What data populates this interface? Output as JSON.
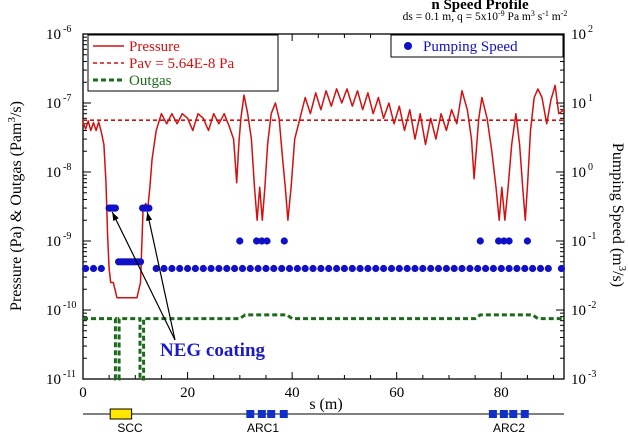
{
  "chart_data": {
    "type": "line",
    "title_partial": "n Speed Profile",
    "subtitle": {
      "ds": "ds = 0.1 m,",
      "q_prefix": "q = 5x10",
      "q_exp": "-9",
      "q_units": " Pa m",
      "q_units_exp": "3",
      "q_s": " s",
      "q_s_exp": "-1",
      "q_m": " m",
      "q_m_exp": "-2"
    },
    "xlabel": "s (m)",
    "ylabel_left": {
      "main": "Pressure (Pa)  &  Outgas (Pam",
      "sup": "3",
      "tail": "/s)"
    },
    "ylabel_right": {
      "main": "Pumping Speed (m",
      "sup": "3",
      "tail": "/s)"
    },
    "xlim": [
      0,
      92
    ],
    "x_ticks": [
      "0",
      "20",
      "40",
      "60",
      "80"
    ],
    "x_tick_values": [
      0,
      20,
      40,
      60,
      80
    ],
    "y_left_scale": "log",
    "y_left_range_exp": [
      -11,
      -6
    ],
    "y_left_ticks": [
      {
        "base": "10",
        "exp": "-11"
      },
      {
        "base": "10",
        "exp": "-10"
      },
      {
        "base": "10",
        "exp": "-9"
      },
      {
        "base": "10",
        "exp": "-8"
      },
      {
        "base": "10",
        "exp": "-7"
      },
      {
        "base": "10",
        "exp": "-6"
      }
    ],
    "y_right_scale": "log",
    "y_right_range_exp": [
      -3,
      2
    ],
    "y_right_ticks": [
      {
        "base": "10",
        "exp": "-3"
      },
      {
        "base": "10",
        "exp": "-2"
      },
      {
        "base": "10",
        "exp": "-1"
      },
      {
        "base": "10",
        "exp": "0"
      },
      {
        "base": "10",
        "exp": "1"
      },
      {
        "base": "10",
        "exp": "2"
      }
    ],
    "legend_left": [
      {
        "label": "Pressure",
        "color": "#d21010",
        "style": "solid"
      },
      {
        "label": "Pav = 5.64E-8 Pa",
        "color": "#d21010",
        "style": "dashed"
      },
      {
        "label": "Outgas",
        "color": "#1b6b1b",
        "style": "dashed"
      }
    ],
    "legend_right": [
      {
        "label": "Pumping Speed",
        "color": "#1010c8",
        "style": "markers"
      }
    ],
    "pav_value": 5.64e-08,
    "outgas": {
      "x": [
        0,
        6.2,
        6.2,
        6.9,
        6.9,
        10.9,
        10.9,
        11.6,
        11.6,
        30,
        31,
        39,
        40,
        75,
        76,
        86,
        87,
        92
      ],
      "y": [
        7.5e-11,
        7.5e-11,
        1e-11,
        1e-11,
        7.5e-11,
        7.5e-11,
        1e-11,
        1e-11,
        7.5e-11,
        7.5e-11,
        8.5e-11,
        8.5e-11,
        7.5e-11,
        7.5e-11,
        8.5e-11,
        8.5e-11,
        7.5e-11,
        7.5e-11
      ]
    },
    "pressure": {
      "x": [
        0,
        0.5,
        1,
        1.5,
        2,
        2.5,
        3,
        3.5,
        4,
        4.4,
        4.7,
        5,
        5.3,
        5.8,
        6.5,
        7.5,
        9,
        10.3,
        11,
        11.5,
        12,
        12.4,
        12.8,
        13.2,
        14,
        15,
        16,
        17,
        18,
        19,
        20,
        21,
        22,
        23,
        24,
        25,
        26,
        27,
        28,
        28.8,
        29.4,
        29.8,
        30.2,
        30.8,
        31.5,
        32.2,
        32.8,
        33.3,
        33.8,
        34.3,
        34.8,
        35.3,
        36,
        36.8,
        37.5,
        38.2,
        38.7,
        39.2,
        39.8,
        40.5,
        41.5,
        42.5,
        43.5,
        44.5,
        45.5,
        46.5,
        47.5,
        48.5,
        49.5,
        50.5,
        51.5,
        52.5,
        53.5,
        54.5,
        55.5,
        56.5,
        57.5,
        58.5,
        59.5,
        60.5,
        61.5,
        62.5,
        63.5,
        64.5,
        65.5,
        66.5,
        67.5,
        68.5,
        69.5,
        70.5,
        71.5,
        72.5,
        73.5,
        74.3,
        74.8,
        75.2,
        75.7,
        76.3,
        77.3,
        78.2,
        79,
        79.6,
        80.1,
        80.7,
        81.3,
        82,
        82.8,
        83.5,
        84.1,
        84.6,
        85.1,
        85.6,
        86.3,
        87,
        87.8,
        88.7,
        89.5,
        90.3,
        91,
        92
      ],
      "y": [
        5.2e-08,
        4.2e-08,
        5.5e-08,
        4e-08,
        5.2e-08,
        4e-08,
        5.3e-08,
        3.8e-08,
        2.5e-08,
        7e-09,
        1.2e-09,
        4e-10,
        2.5e-10,
        2.5e-10,
        1.5e-10,
        1.5e-10,
        1.5e-10,
        1.5e-10,
        2.5e-10,
        3e-09,
        3.5e-09,
        3e-09,
        6e-09,
        1.5e-08,
        4e-08,
        7e-08,
        5e-08,
        7e-08,
        5e-08,
        7e-08,
        6e-08,
        4e-08,
        7e-08,
        6e-08,
        4e-08,
        7e-08,
        5e-08,
        7e-08,
        4.5e-08,
        3e-08,
        7e-09,
        2.5e-08,
        6e-08,
        1.3e-07,
        7e-08,
        3e-08,
        6e-09,
        2e-09,
        6e-09,
        2e-09,
        6e-09,
        2.5e-08,
        7e-08,
        1e-07,
        6e-08,
        1.5e-08,
        6e-09,
        2e-09,
        6e-09,
        3e-08,
        6e-08,
        1.2e-07,
        7e-08,
        1.4e-07,
        8e-08,
        1.5e-07,
        9e-08,
        1.6e-07,
        1e-07,
        1.6e-07,
        9e-08,
        1.5e-07,
        8e-08,
        1.4e-07,
        7e-08,
        1.2e-07,
        6e-08,
        1e-07,
        5e-08,
        9e-08,
        4e-08,
        8e-08,
        3e-08,
        7e-08,
        2.5e-08,
        6e-08,
        3e-08,
        7e-08,
        4e-08,
        8e-08,
        5e-08,
        1.5e-07,
        8e-08,
        3e-08,
        8e-09,
        2e-08,
        6e-08,
        1.2e-07,
        6e-08,
        2e-08,
        6e-09,
        2e-09,
        6e-09,
        2e-09,
        6e-09,
        2.5e-08,
        7e-08,
        2.5e-08,
        6e-09,
        2e-09,
        8e-09,
        4e-08,
        1.2e-07,
        1.6e-07,
        1.2e-07,
        5e-08,
        1.1e-07,
        1.8e-07,
        7e-08,
        8e-08
      ],
      "color": "#d21010"
    },
    "pumping_speed": {
      "x": [
        0.5,
        2,
        3.5,
        5,
        5.3,
        5.6,
        5.9,
        6.2,
        6.8,
        7.2,
        7.6,
        8,
        8.4,
        8.8,
        9.2,
        9.6,
        10,
        10.5,
        11,
        11.4,
        11.8,
        12.2,
        12.6,
        12.3,
        14,
        15.5,
        17,
        18.5,
        20,
        21.5,
        23,
        24.5,
        26,
        27.5,
        29,
        30.5,
        32,
        33.5,
        35,
        36.5,
        38,
        39.5,
        41,
        42.5,
        44,
        45.5,
        47,
        48.5,
        50,
        51.5,
        53,
        54.5,
        56,
        57.5,
        59,
        60.5,
        62,
        63.5,
        65,
        66.5,
        68,
        69.5,
        71,
        72.5,
        74,
        75.5,
        77,
        78.5,
        80,
        81.5,
        83,
        84.5,
        86,
        87.5,
        89,
        91.5,
        30,
        33.2,
        34.2,
        35.2,
        38.5,
        76,
        79.5,
        80.5,
        81.5,
        85
      ],
      "y": [
        0.04,
        0.04,
        0.04,
        0.3,
        0.3,
        0.3,
        0.3,
        0.3,
        0.05,
        0.05,
        0.05,
        0.05,
        0.05,
        0.05,
        0.05,
        0.05,
        0.05,
        0.05,
        0.05,
        0.3,
        0.3,
        0.3,
        0.3,
        0.3,
        0.04,
        0.04,
        0.04,
        0.04,
        0.04,
        0.04,
        0.04,
        0.04,
        0.04,
        0.04,
        0.04,
        0.04,
        0.04,
        0.04,
        0.04,
        0.04,
        0.04,
        0.04,
        0.04,
        0.04,
        0.04,
        0.04,
        0.04,
        0.04,
        0.04,
        0.04,
        0.04,
        0.04,
        0.04,
        0.04,
        0.04,
        0.04,
        0.04,
        0.04,
        0.04,
        0.04,
        0.04,
        0.04,
        0.04,
        0.04,
        0.04,
        0.04,
        0.04,
        0.04,
        0.04,
        0.04,
        0.04,
        0.04,
        0.04,
        0.04,
        0.04,
        0.04,
        0.1,
        0.1,
        0.1,
        0.1,
        0.1,
        0.1,
        0.1,
        0.1,
        0.1,
        0.1
      ],
      "color": "#1010c8"
    },
    "annotation": {
      "text": "NEG coating",
      "color": "#1a1acc",
      "arrow_targets": [
        [
          5.6,
          3e-09
        ],
        [
          12.3,
          3e-09
        ]
      ]
    },
    "lattice": {
      "labels": [
        "SCC",
        "ARC1",
        "ARC2"
      ],
      "scc": {
        "from": 5.2,
        "to": 9.3,
        "color": "#ffe600"
      },
      "arc1_blocks": [
        32,
        34.2,
        36,
        38.4
      ],
      "arc2_blocks": [
        78.4,
        80.5,
        82.3,
        84.5
      ],
      "block_color": "#1030c8"
    }
  }
}
